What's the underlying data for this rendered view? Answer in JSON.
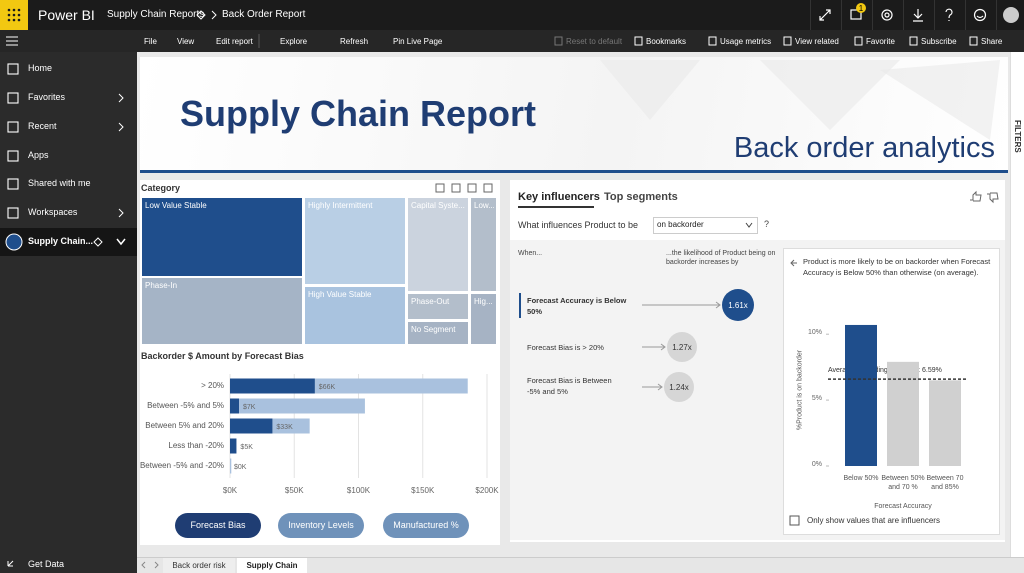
{
  "topbar": {
    "app": "Power BI",
    "workspace": "Supply Chain Reports",
    "report": "Back Order Report",
    "badge": "1"
  },
  "toolbar": {
    "left": [
      "File",
      "View",
      "Edit report",
      "Explore",
      "Refresh",
      "Pin Live Page"
    ],
    "right": [
      "Reset to default",
      "Bookmarks",
      "Usage metrics",
      "View related",
      "Favorite",
      "Subscribe",
      "Share"
    ]
  },
  "nav": {
    "items": [
      "Home",
      "Favorites",
      "Recent",
      "Apps",
      "Shared with me",
      "Workspaces",
      "Supply Chain..."
    ],
    "bottom": "Get Data"
  },
  "filters": "FILTERS",
  "header": {
    "title": "Supply Chain Report",
    "subtitle": "Back order analytics"
  },
  "treemap": {
    "title": "Category",
    "tiles": [
      "Low Value Stable",
      "Phase-In",
      "Highly Intermittent",
      "High Value Stable",
      "Capital Syste...",
      "Low...",
      "Phase-Out",
      "No Segment",
      "Hig..."
    ]
  },
  "buttons": [
    "Forecast Bias",
    "Inventory Levels",
    "Manufactured %"
  ],
  "key_influencers": {
    "tabs": [
      "Key influencers",
      "Top segments"
    ],
    "question": "What influences Product to be",
    "dropdown": "on backorder",
    "help": "?",
    "when": "When...",
    "likelihood": "...the likelihood of Product being on backorder increases by",
    "factors": [
      {
        "label": "Forecast Accuracy is Below 50%",
        "value": "1.61x"
      },
      {
        "label": "Forecast Bias is > 20%",
        "value": "1.27x"
      },
      {
        "label": "Forecast Bias is Between -5% and 5%",
        "value": "1.24x"
      }
    ],
    "detail": "Product is more likely to be on backorder when Forecast Accuracy is Below 50% than otherwise (on average).",
    "checkbox": "Only show values that are influencers"
  },
  "tabs": [
    "Back order risk",
    "Supply Chain"
  ],
  "chart_data": [
    {
      "type": "bar",
      "orientation": "horizontal",
      "title": "Backorder $ Amount by Forecast Bias",
      "categories": [
        "> 20%",
        "Between -5% and 5%",
        "Between 5% and 20%",
        "Less than -20%",
        "Between -5% and -20%"
      ],
      "series": [
        {
          "color": "#a9c1de",
          "values": [
            185,
            105,
            62,
            5,
            1
          ]
        },
        {
          "color": "#1f4e8c",
          "values": [
            66,
            7,
            33,
            5,
            0
          ],
          "value_labels": [
            "$66K",
            "$7K",
            "$33K",
            "$5K",
            "$0K"
          ]
        }
      ],
      "xlim": [
        0,
        200
      ],
      "xticks": [
        {
          "value": 0,
          "label": "$0K"
        },
        {
          "value": 50,
          "label": "$50K"
        },
        {
          "value": 100,
          "label": "$100K"
        },
        {
          "value": 150,
          "label": "$150K"
        },
        {
          "value": 200,
          "label": "$200K"
        }
      ],
      "grid": true
    },
    {
      "type": "column",
      "y_label": "%Product is on backorder",
      "x_label": "Forecast Accuracy",
      "categories": [
        "Below 50%",
        "Between 50% and 70 %",
        "Between 70 and 85%"
      ],
      "values": [
        10.7,
        7.9,
        6.5
      ],
      "colors": [
        "#1f4e8c",
        "#d0d0d0",
        "#d0d0d0"
      ],
      "ylim": [
        0,
        11
      ],
      "yticks": [
        {
          "value": 0,
          "label": "0%"
        },
        {
          "value": 5,
          "label": "5%"
        },
        {
          "value": 10,
          "label": "10%"
        }
      ],
      "reference_line": {
        "value": 6.59,
        "label": "Average (excluding selected): 6.59%"
      }
    }
  ]
}
